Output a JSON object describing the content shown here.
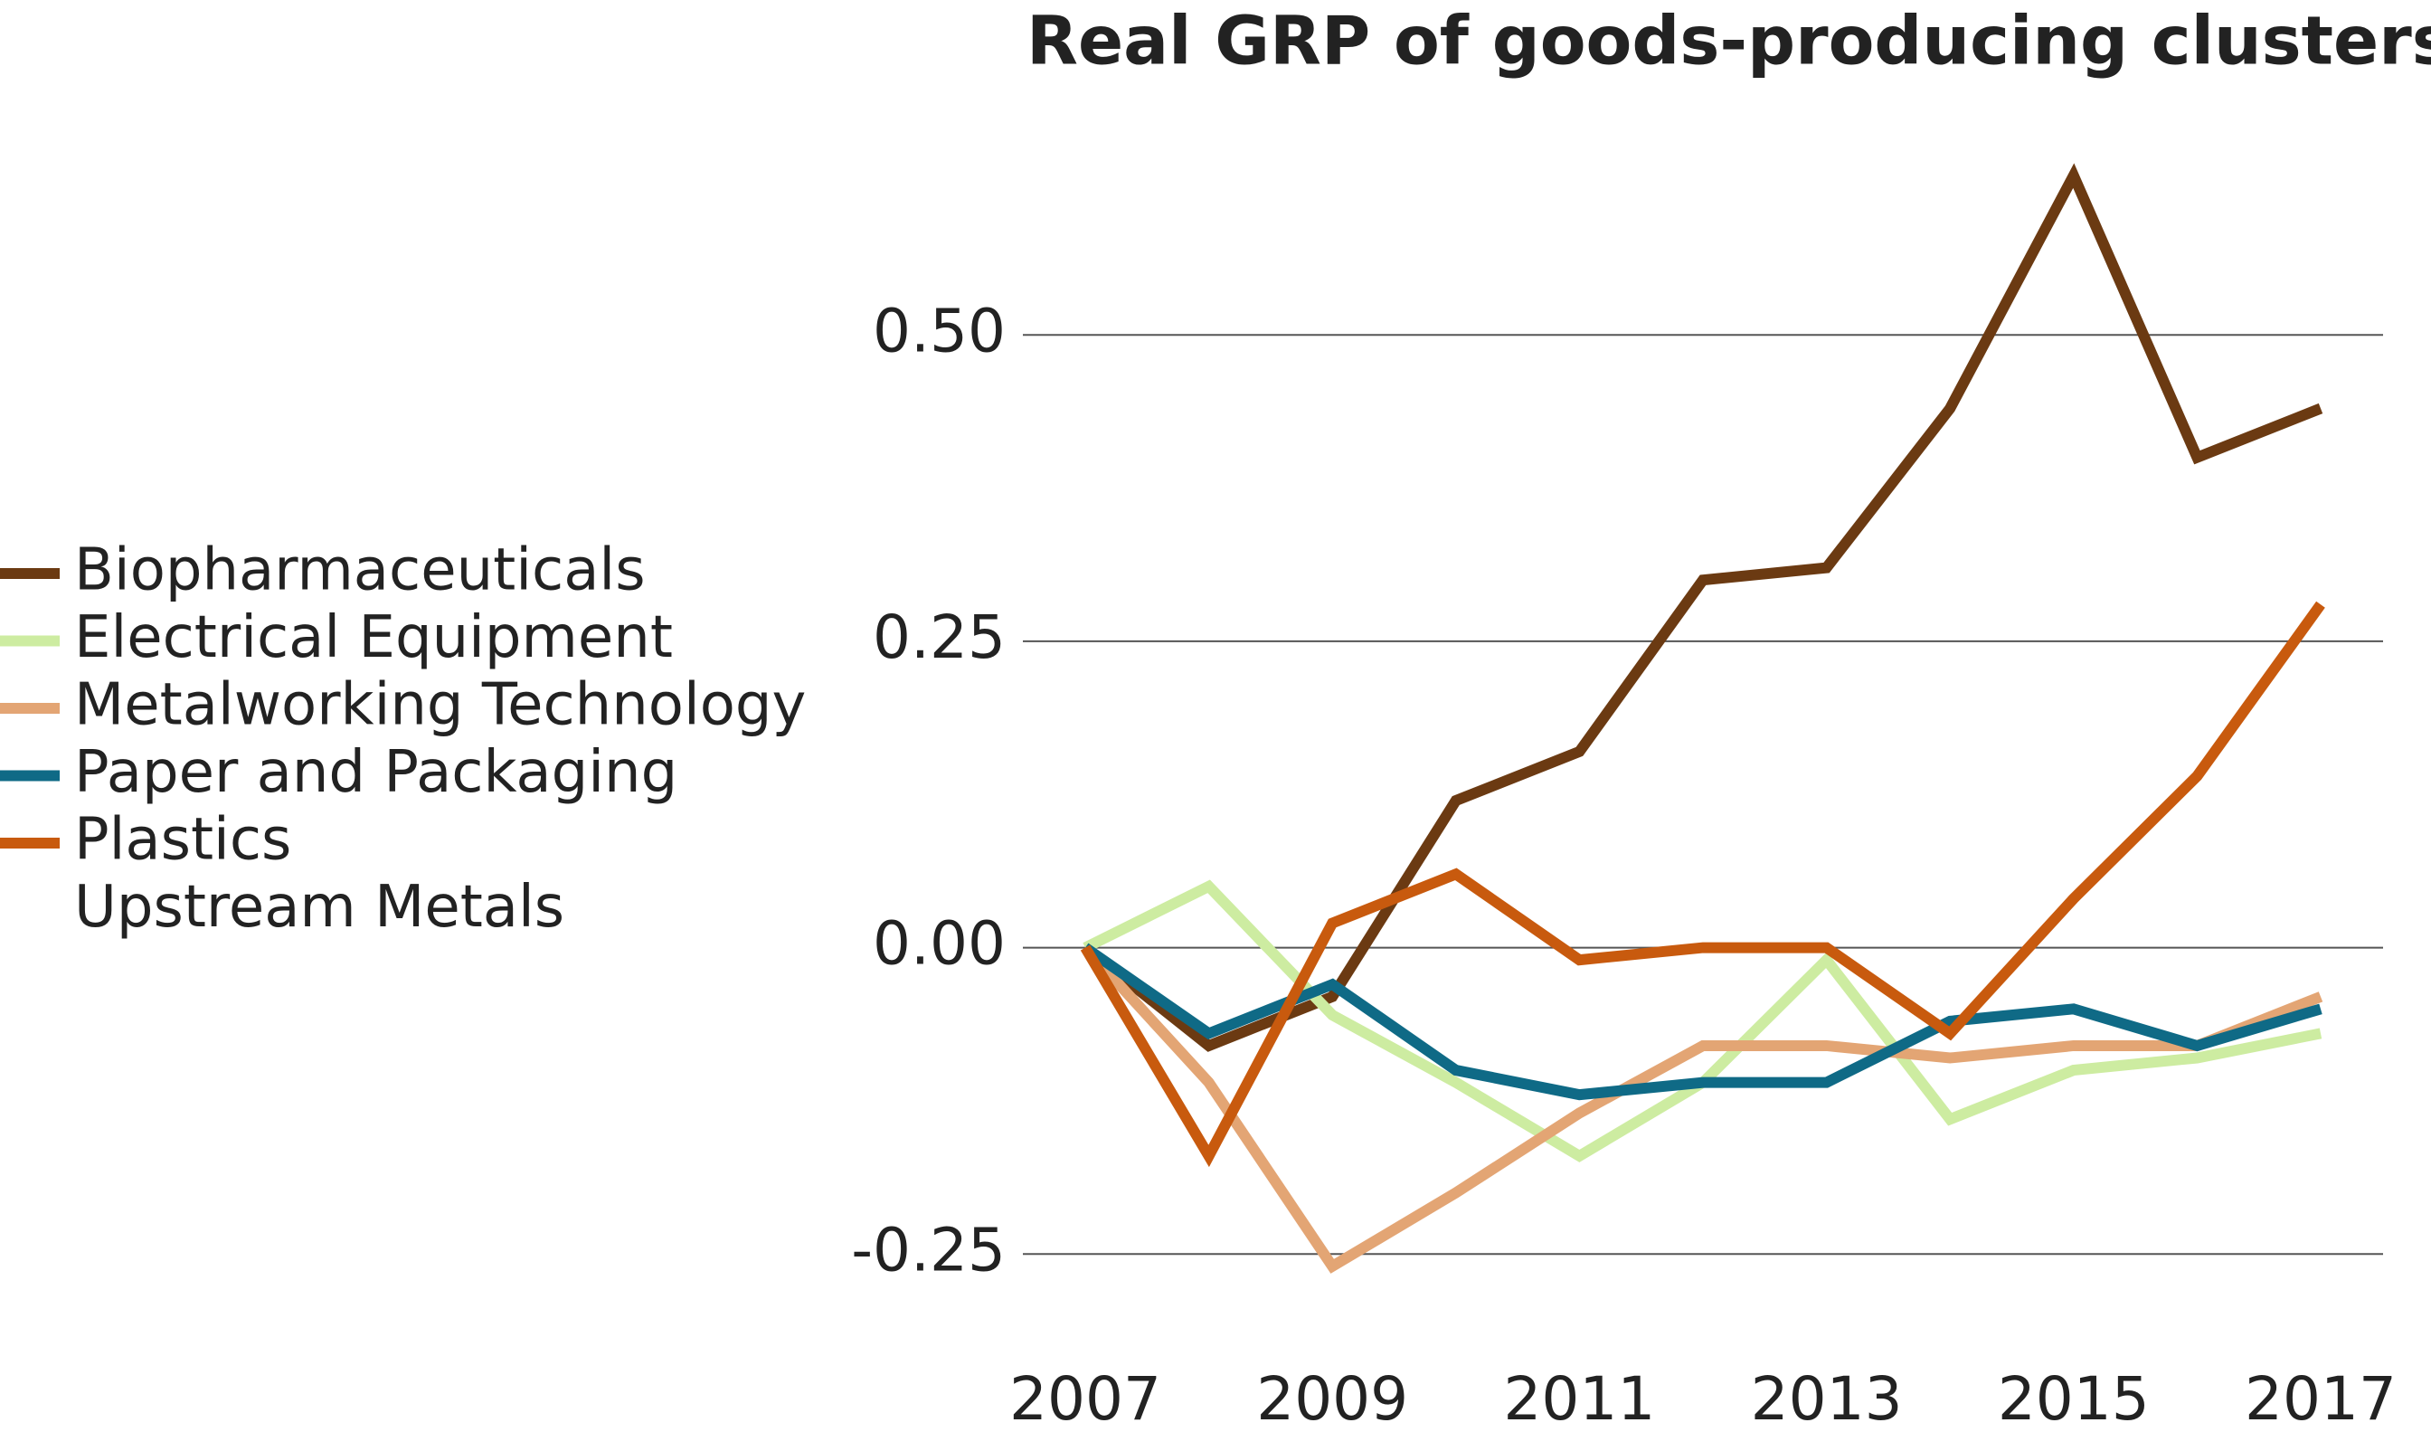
{
  "chart_data": {
    "type": "line",
    "title": "Real GRP of goods-producing clusters ov",
    "x": [
      2007,
      2008,
      2009,
      2010,
      2011,
      2012,
      2013,
      2014,
      2015,
      2016,
      2017
    ],
    "xlim": [
      2007,
      2017
    ],
    "xticks": [
      2007,
      2009,
      2011,
      2013,
      2015,
      2017
    ],
    "ylim": [
      -0.3,
      0.65
    ],
    "yticks": [
      {
        "value": 0.5,
        "label": "0.50"
      },
      0.25,
      {
        "value": 0,
        "label": "0.00"
      },
      -0.25
    ],
    "grid": true,
    "legend": "left",
    "series": [
      {
        "name": "Biopharmaceuticals",
        "color": "#6b3a12",
        "values": [
          0,
          -0.08,
          -0.04,
          0.12,
          0.16,
          0.3,
          0.31,
          0.44,
          0.63,
          0.4,
          0.44
        ]
      },
      {
        "name": "Electrical Equipment",
        "color": "#cdeca1",
        "values": [
          0,
          0.05,
          -0.055,
          -0.11,
          -0.17,
          -0.11,
          -0.01,
          -0.14,
          -0.1,
          -0.09,
          -0.07
        ]
      },
      {
        "name": "Metalworking Technology",
        "color": "#e3a574",
        "values": [
          0,
          -0.11,
          -0.26,
          -0.2,
          -0.135,
          -0.08,
          -0.08,
          -0.09,
          -0.08,
          -0.08,
          -0.04
        ]
      },
      {
        "name": "Paper and Packaging",
        "color": "#0f6a86",
        "values": [
          0,
          -0.07,
          -0.03,
          -0.1,
          -0.12,
          -0.11,
          -0.11,
          -0.06,
          -0.05,
          -0.08,
          -0.05
        ]
      },
      {
        "name": "Plastics",
        "color": "#c85a0e",
        "values": [
          0,
          -0.17,
          0.02,
          0.06,
          -0.01,
          0,
          0,
          -0.07,
          0.04,
          0.14,
          0.28
        ]
      },
      {
        "name": "Upstream Metals",
        "color": "#ffffff",
        "values": [
          null,
          null,
          null,
          null,
          null,
          null,
          null,
          null,
          null,
          null,
          null
        ]
      }
    ]
  }
}
